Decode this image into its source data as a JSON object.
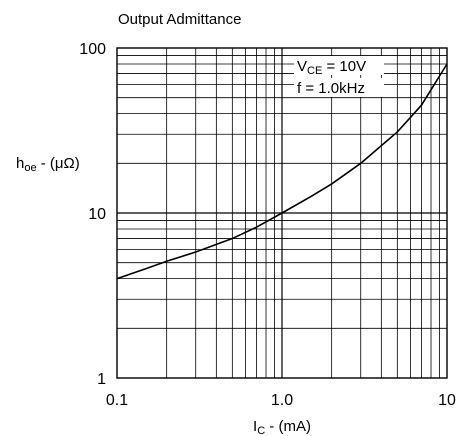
{
  "chart_data": {
    "type": "line",
    "title": "Output Admittance",
    "x_scale": "log",
    "y_scale": "log",
    "xlim": [
      0.1,
      10
    ],
    "ylim": [
      1,
      100
    ],
    "grid": true,
    "xlabel": {
      "main": "I",
      "sub": "C",
      "rest": " - (mA)"
    },
    "ylabel": {
      "main": "h",
      "sub": "oe",
      "rest": " - (μΩ)"
    },
    "x_ticks": [
      {
        "value": 0.1,
        "label": "0.1"
      },
      {
        "value": 1,
        "label": "1.0"
      },
      {
        "value": 10,
        "label": "10"
      }
    ],
    "y_ticks": [
      {
        "value": 1,
        "label": "1"
      },
      {
        "value": 10,
        "label": "10"
      },
      {
        "value": 100,
        "label": "100"
      }
    ],
    "annotations": [
      {
        "main": "V",
        "sub": "CE",
        "rest": " = 10V"
      },
      {
        "main": "f = 1.0kHz",
        "sub": "",
        "rest": ""
      }
    ],
    "series": [
      {
        "x": [
          0.1,
          0.15,
          0.2,
          0.3,
          0.5,
          0.7,
          1.0,
          1.5,
          2.0,
          3.0,
          5.0,
          7.0,
          10.0
        ],
        "y": [
          4.0,
          4.6,
          5.1,
          5.8,
          7.0,
          8.2,
          10.0,
          12.6,
          15.0,
          20.0,
          31.0,
          45.0,
          80.0
        ]
      }
    ],
    "colors": {
      "line": "#000000",
      "grid": "#000000"
    }
  }
}
